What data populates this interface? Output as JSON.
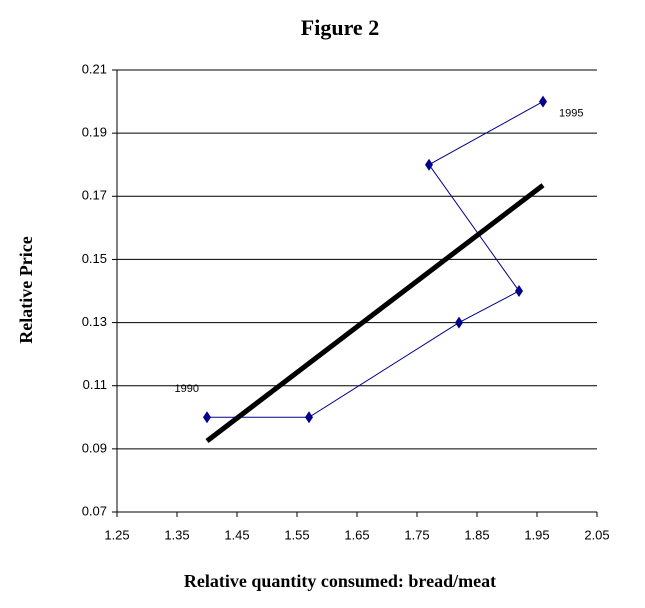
{
  "chart_data": {
    "type": "line",
    "title": "Figure 2",
    "x_label": "Relative quantity consumed: bread/meat",
    "y_label": "Relative Price",
    "annotations": [
      "1990",
      "1995"
    ],
    "series": [
      {
        "color": "#00008b",
        "x": [
          1.4,
          1.57,
          1.82,
          1.92,
          1.77,
          1.96
        ],
        "values": [
          0.1,
          0.1,
          0.13,
          0.14,
          0.18,
          0.2
        ]
      },
      {
        "color": "#000000",
        "x": [
          1.4,
          1.96
        ],
        "values": [
          0.0925,
          0.1735
        ]
      }
    ],
    "xlim": [
      1.25,
      2.05
    ],
    "xticks": [
      1.25,
      1.35,
      1.45,
      1.55,
      1.65,
      1.75,
      1.85,
      1.95,
      2.05
    ],
    "ylim": [
      0.07,
      0.21
    ],
    "yticks": [
      0.07,
      0.09,
      0.11,
      0.13,
      0.15,
      0.17,
      0.19,
      0.21
    ],
    "grid": true
  }
}
